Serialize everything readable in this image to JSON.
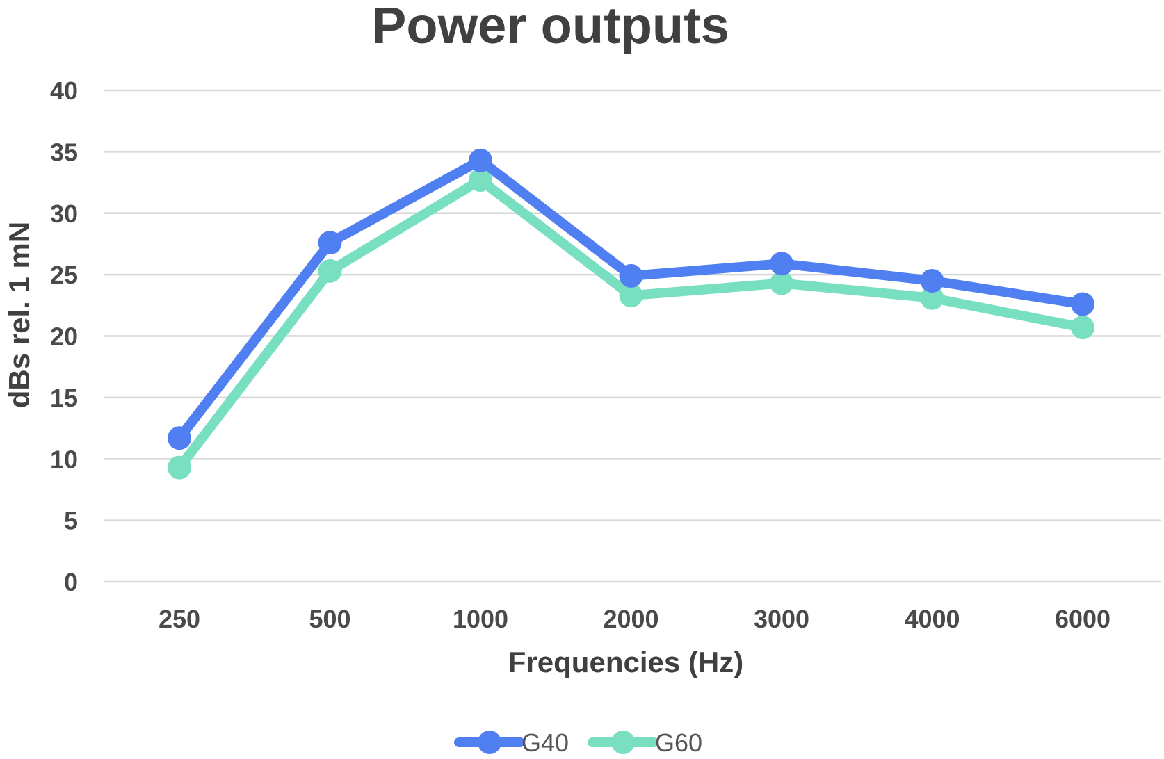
{
  "chart_data": {
    "type": "line",
    "title": "Power outputs",
    "xlabel": "Frequencies (Hz)",
    "ylabel": "dBs rel. 1 mN",
    "categories": [
      "250",
      "500",
      "1000",
      "2000",
      "3000",
      "4000",
      "6000"
    ],
    "yticks": [
      "0",
      "5",
      "10",
      "15",
      "20",
      "25",
      "30",
      "35",
      "40"
    ],
    "ylim": [
      0,
      40
    ],
    "grid": true,
    "legend_position": "bottom-center",
    "series": [
      {
        "name": "G40",
        "color": "#4f7ff0",
        "values": [
          11.7,
          27.6,
          34.3,
          24.9,
          25.9,
          24.5,
          22.6
        ]
      },
      {
        "name": "G60",
        "color": "#79dfc1",
        "values": [
          9.3,
          25.3,
          32.7,
          23.3,
          24.3,
          23.1,
          20.7
        ]
      }
    ]
  }
}
